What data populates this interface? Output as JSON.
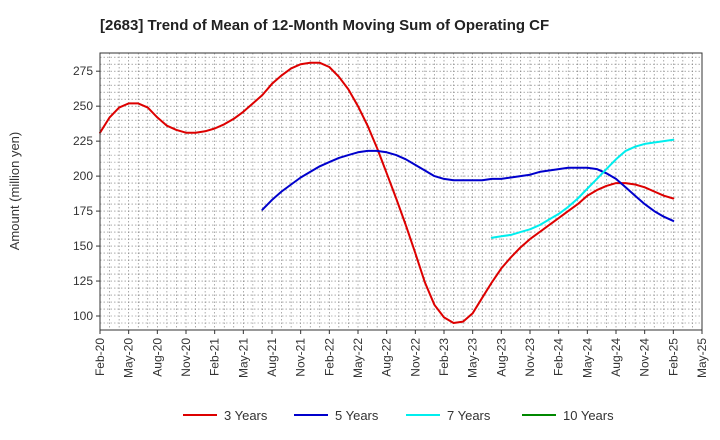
{
  "chart_data": {
    "type": "line",
    "title": "[2683]  Trend of Mean of 12-Month Moving Sum of Operating CF",
    "xlabel": "",
    "ylabel": "Amount (million yen)",
    "ylim": [
      90,
      288
    ],
    "yticks": [
      100,
      125,
      150,
      175,
      200,
      225,
      250,
      275
    ],
    "xticks": [
      "Feb-20",
      "May-20",
      "Aug-20",
      "Nov-20",
      "Feb-21",
      "May-21",
      "Aug-21",
      "Nov-21",
      "Feb-22",
      "May-22",
      "Aug-22",
      "Nov-22",
      "Feb-23",
      "May-23",
      "Aug-23",
      "Nov-23",
      "Feb-24",
      "May-24",
      "Aug-24",
      "Nov-24",
      "Feb-25",
      "May-25"
    ],
    "x_month_range": [
      0,
      63
    ],
    "grid": true,
    "legend_position": "bottom",
    "series": [
      {
        "name": "3 Years",
        "color": "#dd0000",
        "x": [
          0,
          1,
          2,
          3,
          4,
          5,
          6,
          7,
          8,
          9,
          10,
          11,
          12,
          13,
          14,
          15,
          16,
          17,
          18,
          19,
          20,
          21,
          22,
          23,
          24,
          25,
          26,
          27,
          28,
          29,
          30,
          31,
          32,
          33,
          34,
          35,
          36,
          37,
          38,
          39,
          40,
          41,
          42,
          43,
          44,
          45,
          46,
          47,
          48,
          49,
          50,
          51,
          52,
          53,
          54,
          55,
          56,
          57,
          58,
          59,
          60
        ],
        "values": [
          231,
          242,
          249,
          252,
          252,
          249,
          242,
          236,
          233,
          231,
          231,
          232,
          234,
          237,
          241,
          246,
          252,
          258,
          266,
          272,
          277,
          280,
          281,
          281,
          278,
          271,
          262,
          250,
          236,
          220,
          202,
          184,
          165,
          145,
          124,
          108,
          99,
          95,
          96,
          102,
          113,
          124,
          134,
          142,
          149,
          155,
          160,
          165,
          170,
          175,
          180,
          186,
          190,
          193,
          195,
          195,
          194,
          192,
          189,
          186,
          184
        ]
      },
      {
        "name": "5 Years",
        "color": "#0000cc",
        "x": [
          17,
          18,
          19,
          20,
          21,
          22,
          23,
          24,
          25,
          26,
          27,
          28,
          29,
          30,
          31,
          32,
          33,
          34,
          35,
          36,
          37,
          38,
          39,
          40,
          41,
          42,
          43,
          44,
          45,
          46,
          47,
          48,
          49,
          50,
          51,
          52,
          53,
          54,
          55,
          56,
          57,
          58,
          59,
          60
        ],
        "values": [
          176,
          183,
          189,
          194,
          199,
          203,
          207,
          210,
          213,
          215,
          217,
          218,
          218,
          217,
          215,
          212,
          208,
          204,
          200,
          198,
          197,
          197,
          197,
          197,
          198,
          198,
          199,
          200,
          201,
          203,
          204,
          205,
          206,
          206,
          206,
          205,
          202,
          198,
          192,
          186,
          180,
          175,
          171,
          168
        ]
      },
      {
        "name": "7 Years",
        "color": "#00eeee",
        "x": [
          41,
          42,
          43,
          44,
          45,
          46,
          47,
          48,
          49,
          50,
          51,
          52,
          53,
          54,
          55,
          56,
          57,
          58,
          59,
          60
        ],
        "values": [
          156,
          157,
          158,
          160,
          162,
          165,
          169,
          173,
          178,
          184,
          191,
          198,
          205,
          212,
          218,
          221,
          223,
          224,
          225,
          226
        ]
      },
      {
        "name": "10 Years",
        "color": "#008800",
        "x": [],
        "values": []
      }
    ]
  }
}
